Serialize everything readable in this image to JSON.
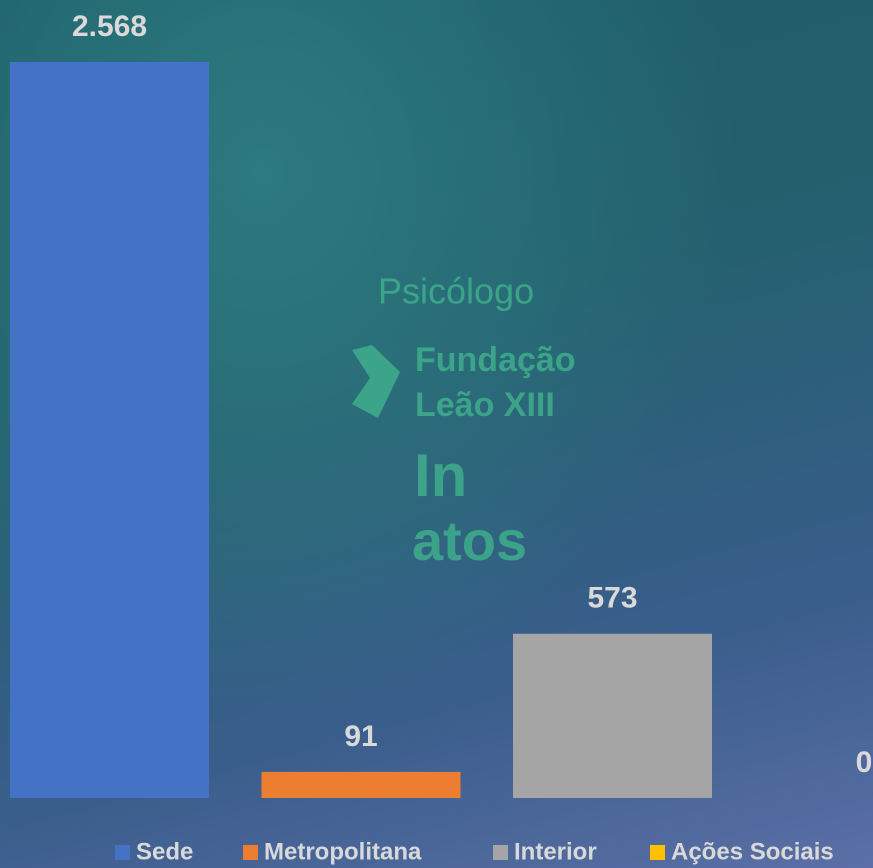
{
  "chart_data": {
    "type": "bar",
    "series": [
      {
        "name": "Sede",
        "color": "#4472c4",
        "values": [
          2568
        ],
        "value_labels": [
          "2.568"
        ]
      },
      {
        "name": "Metropolitana",
        "color": "#ed7d31",
        "values": [
          91
        ]
      },
      {
        "name": "Interior",
        "color": "#a5a5a5",
        "values": [
          573
        ]
      },
      {
        "name": "Ações Sociais",
        "color": "#ffc000",
        "values": [
          0
        ]
      }
    ],
    "legend": "bottom",
    "background_texts": [
      "Psicólogo",
      "Fundação",
      "Leão XIII",
      "In",
      "atos"
    ]
  }
}
